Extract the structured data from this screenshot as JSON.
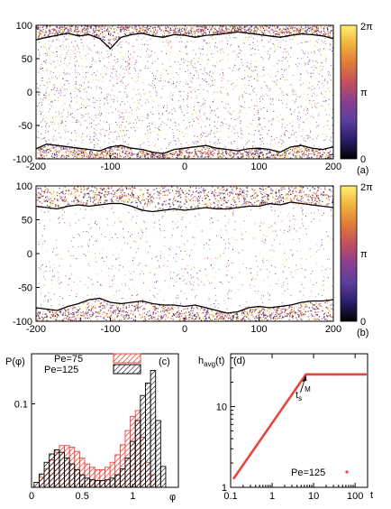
{
  "colormap": {
    "stops": [
      "#000000",
      "#2b1d6b",
      "#5a3f9e",
      "#8a3f8f",
      "#c24f5c",
      "#e07a3a",
      "#f0b23c",
      "#ffef70"
    ]
  },
  "chart_data": [
    {
      "panel": "(a)",
      "type": "heatmap",
      "xlim": [
        -200,
        200
      ],
      "ylim": [
        -100,
        100
      ],
      "x_ticks": [
        "-200",
        "-100",
        "0",
        "100",
        "200"
      ],
      "y_ticks": [
        "100",
        "50",
        "0",
        "-50",
        "-100"
      ],
      "colorbar_ticks": [
        "2π",
        "π",
        "0"
      ],
      "interface_top_y": [
        78,
        82,
        85,
        88,
        84,
        86,
        80,
        65,
        82,
        86,
        88,
        84,
        82,
        86,
        85,
        82,
        85,
        86,
        88,
        90,
        88,
        86,
        84,
        82,
        85,
        87,
        86,
        84,
        80
      ],
      "interface_bottom_y": [
        -85,
        -78,
        -80,
        -82,
        -84,
        -86,
        -88,
        -82,
        -80,
        -84,
        -86,
        -90,
        -92,
        -86,
        -84,
        -82,
        -80,
        -84,
        -86,
        -88,
        -85,
        -84,
        -86,
        -90,
        -82,
        -80,
        -84,
        -86,
        -82
      ]
    },
    {
      "panel": "(b)",
      "type": "heatmap",
      "xlim": [
        -200,
        200
      ],
      "ylim": [
        -100,
        100
      ],
      "x_ticks": [
        "-200",
        "-100",
        "0",
        "100",
        "200"
      ],
      "y_ticks": [
        "100",
        "50",
        "0",
        "-50",
        "-100"
      ],
      "colorbar_ticks": [
        "2π",
        "π",
        "0"
      ],
      "interface_top_y": [
        70,
        68,
        66,
        70,
        72,
        70,
        72,
        74,
        74,
        70,
        64,
        62,
        64,
        66,
        64,
        66,
        68,
        66,
        66,
        68,
        70,
        70,
        74,
        72,
        76,
        74,
        72,
        70,
        68
      ],
      "interface_bottom_y": [
        -80,
        -82,
        -84,
        -78,
        -74,
        -68,
        -66,
        -72,
        -74,
        -72,
        -70,
        -74,
        -76,
        -76,
        -78,
        -76,
        -80,
        -84,
        -88,
        -86,
        -80,
        -78,
        -80,
        -78,
        -76,
        -72,
        -70,
        -70,
        -68
      ]
    },
    {
      "panel": "(c)",
      "type": "bar",
      "ylabel": "P(φ)",
      "xlabel": "φ",
      "xlim": [
        0,
        1.45
      ],
      "ylim": [
        0,
        0.16
      ],
      "x_ticks": [
        "0",
        "0.5",
        "1"
      ],
      "y_ticks": [
        "0.1"
      ],
      "bin_width": 0.05,
      "legend_position": "top-right",
      "series": [
        {
          "name": "Pe=75",
          "color": "#e8453c",
          "x": [
            0.1,
            0.15,
            0.2,
            0.25,
            0.3,
            0.35,
            0.4,
            0.45,
            0.5,
            0.55,
            0.6,
            0.65,
            0.7,
            0.75,
            0.8,
            0.85,
            0.9,
            0.95,
            1.0,
            1.05,
            1.1,
            1.15,
            1.2
          ],
          "values": [
            0.012,
            0.022,
            0.033,
            0.042,
            0.05,
            0.05,
            0.048,
            0.043,
            0.035,
            0.028,
            0.024,
            0.021,
            0.021,
            0.024,
            0.03,
            0.039,
            0.051,
            0.068,
            0.085,
            0.092,
            0.06,
            0.03,
            0.015
          ]
        },
        {
          "name": "Pe=125",
          "color": "#000000",
          "x": [
            0.05,
            0.1,
            0.15,
            0.2,
            0.25,
            0.3,
            0.35,
            0.4,
            0.45,
            0.5,
            0.55,
            0.6,
            0.65,
            0.7,
            0.75,
            0.8,
            0.85,
            0.9,
            0.95,
            1.0,
            1.05,
            1.1,
            1.15,
            1.2,
            1.25,
            1.3
          ],
          "values": [
            0.006,
            0.016,
            0.03,
            0.04,
            0.045,
            0.042,
            0.035,
            0.028,
            0.021,
            0.015,
            0.011,
            0.009,
            0.008,
            0.008,
            0.009,
            0.011,
            0.015,
            0.022,
            0.035,
            0.055,
            0.08,
            0.11,
            0.125,
            0.14,
            0.08,
            0.025
          ]
        }
      ]
    },
    {
      "panel": "(d)",
      "type": "scatter",
      "ylabel": "h",
      "ylabel_sub": "avg",
      "ylabel_suffix": "(t)",
      "xlabel": "t",
      "xscale": "log",
      "yscale": "log",
      "xlim": [
        0.1,
        200
      ],
      "ylim": [
        1,
        45
      ],
      "x_ticks": [
        "0.1",
        "1",
        "10",
        "100"
      ],
      "y_ticks": [
        "10",
        "1"
      ],
      "annotation": {
        "main": "t",
        "sub": "s",
        "sup": "M"
      },
      "annotation_target": [
        6.5,
        25
      ],
      "plateau": 25,
      "series": [
        {
          "name": "Pe=125",
          "color": "#e8453c"
        }
      ]
    }
  ]
}
